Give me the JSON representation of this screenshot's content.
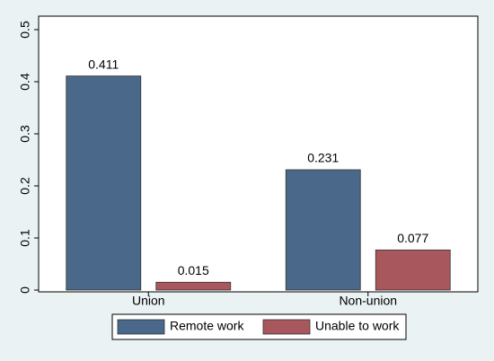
{
  "chart_data": {
    "type": "bar",
    "categories": [
      "Union",
      "Non-union"
    ],
    "series": [
      {
        "name": "Remote work",
        "color": "#4a6889",
        "values": [
          0.411,
          0.231
        ]
      },
      {
        "name": "Unable to work",
        "color": "#a8585c",
        "values": [
          0.015,
          0.077
        ]
      }
    ],
    "ylim": [
      0,
      0.5
    ],
    "yticks": [
      0,
      0.1,
      0.2,
      0.3,
      0.4,
      0.5
    ],
    "grid": false,
    "legend": "bottom"
  }
}
